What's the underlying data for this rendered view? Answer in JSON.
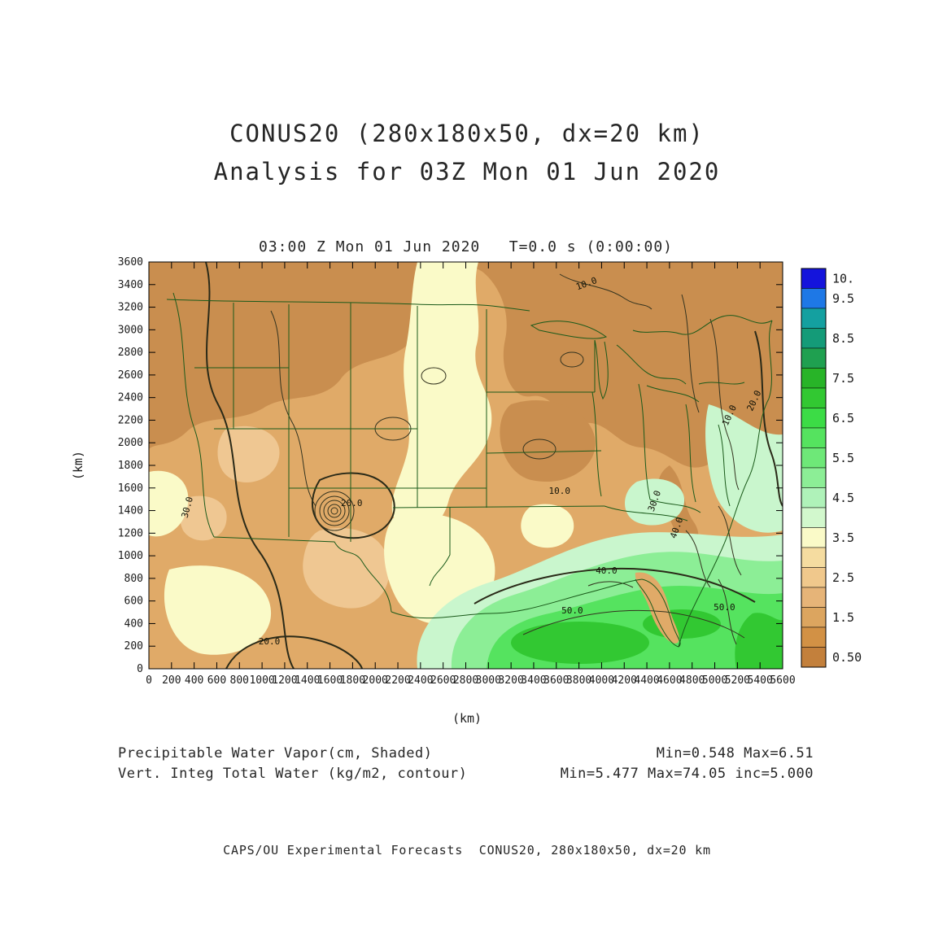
{
  "header": {
    "line1": "CONUS20 (280x180x50, dx=20 km)",
    "line2": "Analysis for 03Z Mon 01 Jun 2020"
  },
  "chart_data": {
    "type": "heatmap",
    "title": "03:00 Z Mon 01 Jun 2020   T=0.0 s (0:00:00)",
    "xlabel": "(km)",
    "ylabel": "(km)",
    "xlim": [
      0,
      5600
    ],
    "ylim": [
      0,
      3600
    ],
    "x_ticks": [
      0,
      200,
      400,
      600,
      800,
      1000,
      1200,
      1400,
      1600,
      1800,
      2000,
      2200,
      2400,
      2600,
      2800,
      3000,
      3200,
      3400,
      3600,
      3800,
      4000,
      4200,
      4400,
      4600,
      4800,
      5000,
      5200,
      5400,
      5600
    ],
    "y_ticks": [
      0,
      200,
      400,
      600,
      800,
      1000,
      1200,
      1400,
      1600,
      1800,
      2000,
      2200,
      2400,
      2600,
      2800,
      3000,
      3200,
      3400,
      3600
    ],
    "shaded_field": {
      "name": "Precipitable Water Vapor",
      "units": "cm",
      "min": 0.548,
      "max": 6.51
    },
    "contour_field": {
      "name": "Vert. Integ Total Water",
      "units": "kg/m2",
      "min": 5.477,
      "max": 74.05,
      "inc": 5.0
    },
    "colorbar": {
      "labels": [
        "10.",
        "9.5",
        "8.5",
        "7.5",
        "6.5",
        "5.5",
        "4.5",
        "3.5",
        "2.5",
        "1.5",
        "0.50"
      ],
      "label_cells": [
        0,
        1,
        3,
        5,
        7,
        9,
        11,
        13,
        15,
        17,
        19
      ],
      "cells": [
        "#1414DC",
        "#1E78E6",
        "#14A0A0",
        "#149B78",
        "#1FA050",
        "#28B428",
        "#32C832",
        "#3CDC46",
        "#55E35F",
        "#6EE878",
        "#8CEE96",
        "#AFF2B9",
        "#D2F8CD",
        "#FAFAC8",
        "#F5DCA0",
        "#F0C88C",
        "#E6B478",
        "#DCA55F",
        "#D29145",
        "#C3803C"
      ]
    },
    "contour_annotations": [
      {
        "text": "20.0",
        "xp": 32.0,
        "yp": 60.0,
        "rot": 0
      },
      {
        "text": "30.0",
        "xp": 6.5,
        "yp": 60.5,
        "rot": -75
      },
      {
        "text": "20.0",
        "xp": 19.0,
        "yp": 94.0,
        "rot": 0
      },
      {
        "text": "10.0",
        "xp": 92.0,
        "yp": 38.0,
        "rot": -65
      },
      {
        "text": "20.0",
        "xp": 95.9,
        "yp": 34.4,
        "rot": -65
      },
      {
        "text": "10.0",
        "xp": 69.2,
        "yp": 6.0,
        "rot": -20
      },
      {
        "text": "10.0",
        "xp": 64.8,
        "yp": 57.0,
        "rot": 0
      },
      {
        "text": "40.0",
        "xp": 72.2,
        "yp": 76.6,
        "rot": 0
      },
      {
        "text": "50.0",
        "xp": 66.8,
        "yp": 86.4,
        "rot": 0
      },
      {
        "text": "50.0",
        "xp": 90.8,
        "yp": 85.6,
        "rot": 0
      },
      {
        "text": "40.0",
        "xp": 83.7,
        "yp": 65.6,
        "rot": -70
      },
      {
        "text": "30.0",
        "xp": 80.2,
        "yp": 59.0,
        "rot": -70
      }
    ]
  },
  "captions": {
    "left1": "Precipitable Water Vapor(cm, Shaded)",
    "left2": "Vert. Integ Total Water (kg/m2, contour)",
    "right1": "Min=0.548 Max=6.51",
    "right2": "Min=5.477 Max=74.05 inc=5.000"
  },
  "footer": "CAPS/OU Experimental Forecasts  CONUS20, 280x180x50, dx=20 km"
}
